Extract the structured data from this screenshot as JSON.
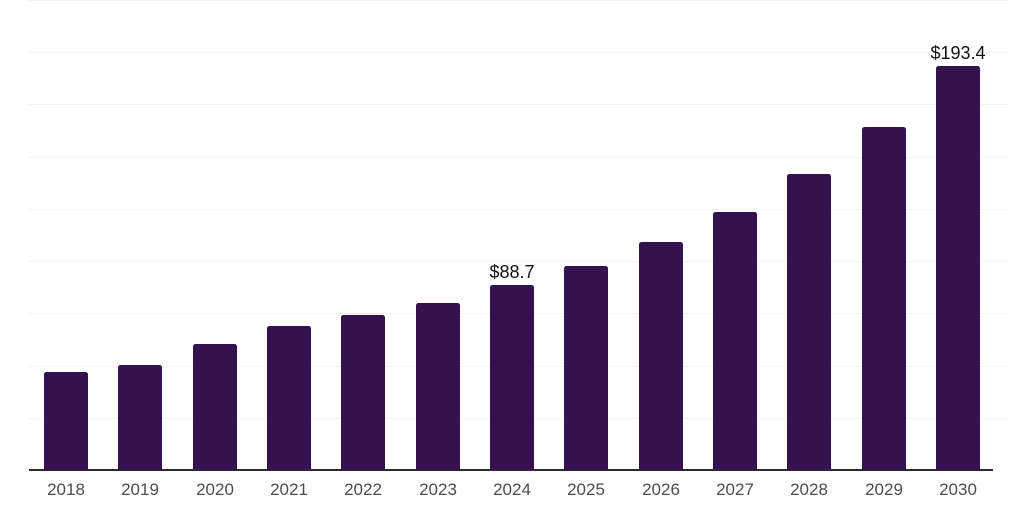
{
  "chart_data": {
    "type": "bar",
    "title": "",
    "xlabel": "",
    "ylabel": "",
    "categories": [
      "2018",
      "2019",
      "2020",
      "2021",
      "2022",
      "2023",
      "2024",
      "2025",
      "2026",
      "2027",
      "2028",
      "2029",
      "2030"
    ],
    "values": [
      46.9,
      50.3,
      60.3,
      68.9,
      74.2,
      79.9,
      88.7,
      97.7,
      109.1,
      123.5,
      141.7,
      164.2,
      193.4
    ],
    "value_labels": {
      "2024": "$88.7",
      "2030": "$193.4"
    },
    "ylim": [
      0,
      225
    ],
    "gridline_step": 25,
    "grid": true,
    "legend_position": "none",
    "colors": {
      "background": "#ffffff",
      "bar": "#351150",
      "gridline": "#f2f2f2",
      "axis_line": "#2b2b2b",
      "tick_label": "#4d4d4d",
      "value_label": "#111111"
    }
  }
}
